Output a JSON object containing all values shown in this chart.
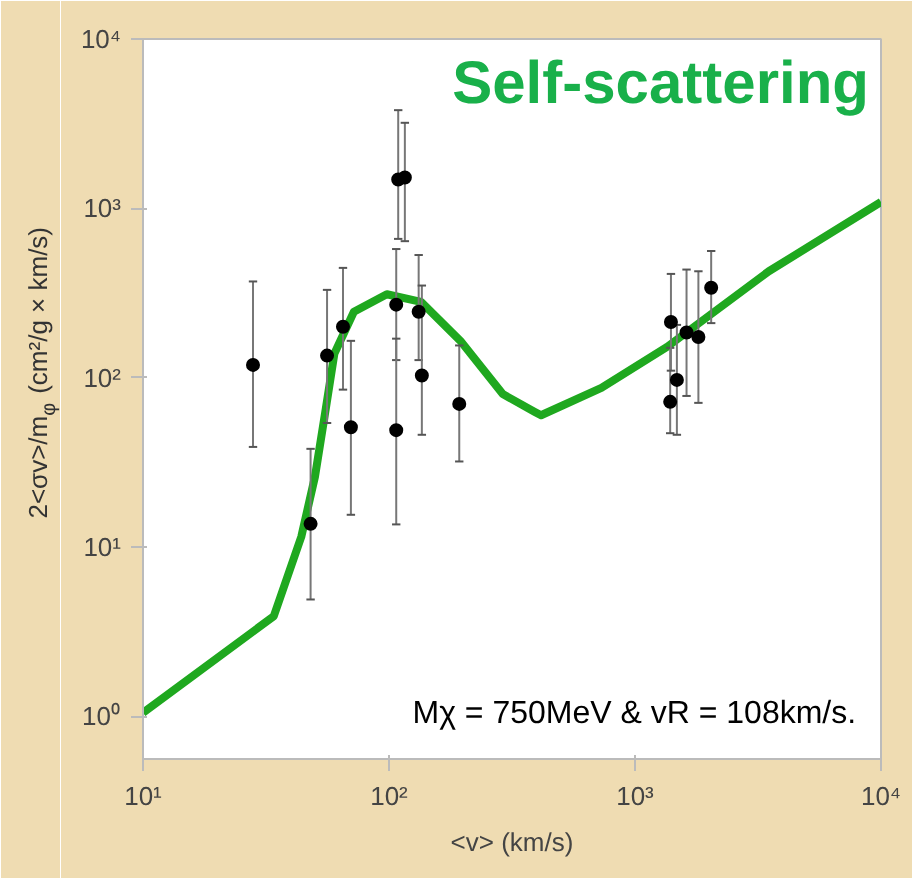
{
  "chart_data": {
    "type": "scatter",
    "title": "Self-scattering",
    "xlabel": "<v> (km/s)",
    "ylabel": "2<σv>/m$_{φ}$ (cm²/g × km/s)",
    "annotations": [
      "Mχ = 750MeV &  vR = 108km/s."
    ],
    "log": "xy",
    "grid": false,
    "xlim": [
      10,
      10000
    ],
    "xticks": [
      {
        "value": 10,
        "label": "10¹"
      },
      {
        "value": 100,
        "label": "10²"
      },
      {
        "value": 1000,
        "label": "10³"
      },
      {
        "value": 10000,
        "label": "10⁴"
      }
    ],
    "ylim": [
      0.56,
      10000
    ],
    "yticks": [
      {
        "value": 1,
        "label": "10⁰"
      },
      {
        "value": 10,
        "label": "10¹"
      },
      {
        "value": 100,
        "label": "10²"
      },
      {
        "value": 1000,
        "label": "10³"
      },
      {
        "value": 10000,
        "label": "10⁴"
      }
    ],
    "series": [
      {
        "type": "line",
        "color": "#1fa81f",
        "line_style": "solid",
        "x": [
          10,
          34,
          44,
          50,
          55,
          60,
          72,
          98,
          135,
          195,
          290,
          390,
          415,
          730,
          1350,
          3500,
          10000
        ],
        "values": [
          1.05,
          3.9,
          11.5,
          26,
          62,
          139,
          245,
          311,
          280,
          165,
          80,
          63,
          60,
          87,
          152,
          425,
          1090
        ]
      },
      {
        "color": "#000000",
        "marker": "circle",
        "x": [
          28,
          48,
          56,
          65,
          70,
          107,
          107,
          109,
          116,
          132,
          136,
          193,
          1390,
          1400,
          1480,
          1620,
          1810,
          2040
        ],
        "values": [
          119,
          13.7,
          135,
          200,
          51,
          270,
          49,
          1480,
          1520,
          245,
          103,
          70,
          72,
          213,
          97,
          185,
          174,
          340
        ],
        "errors": [
          [
            39,
            370
          ],
          [
            4.9,
            38
          ],
          [
            54,
            330
          ],
          [
            85,
            445
          ],
          [
            15.5,
            165
          ],
          [
            127,
            575
          ],
          [
            13.6,
            170
          ],
          [
            660,
            3800
          ],
          [
            640,
            3200
          ],
          [
            127,
            530
          ],
          [
            46,
            350
          ],
          [
            32,
            155
          ],
          [
            47,
            150
          ],
          [
            110,
            410
          ],
          [
            46,
            205
          ],
          [
            78,
            435
          ],
          [
            71,
            425
          ],
          [
            210,
            560
          ]
        ]
      }
    ]
  }
}
